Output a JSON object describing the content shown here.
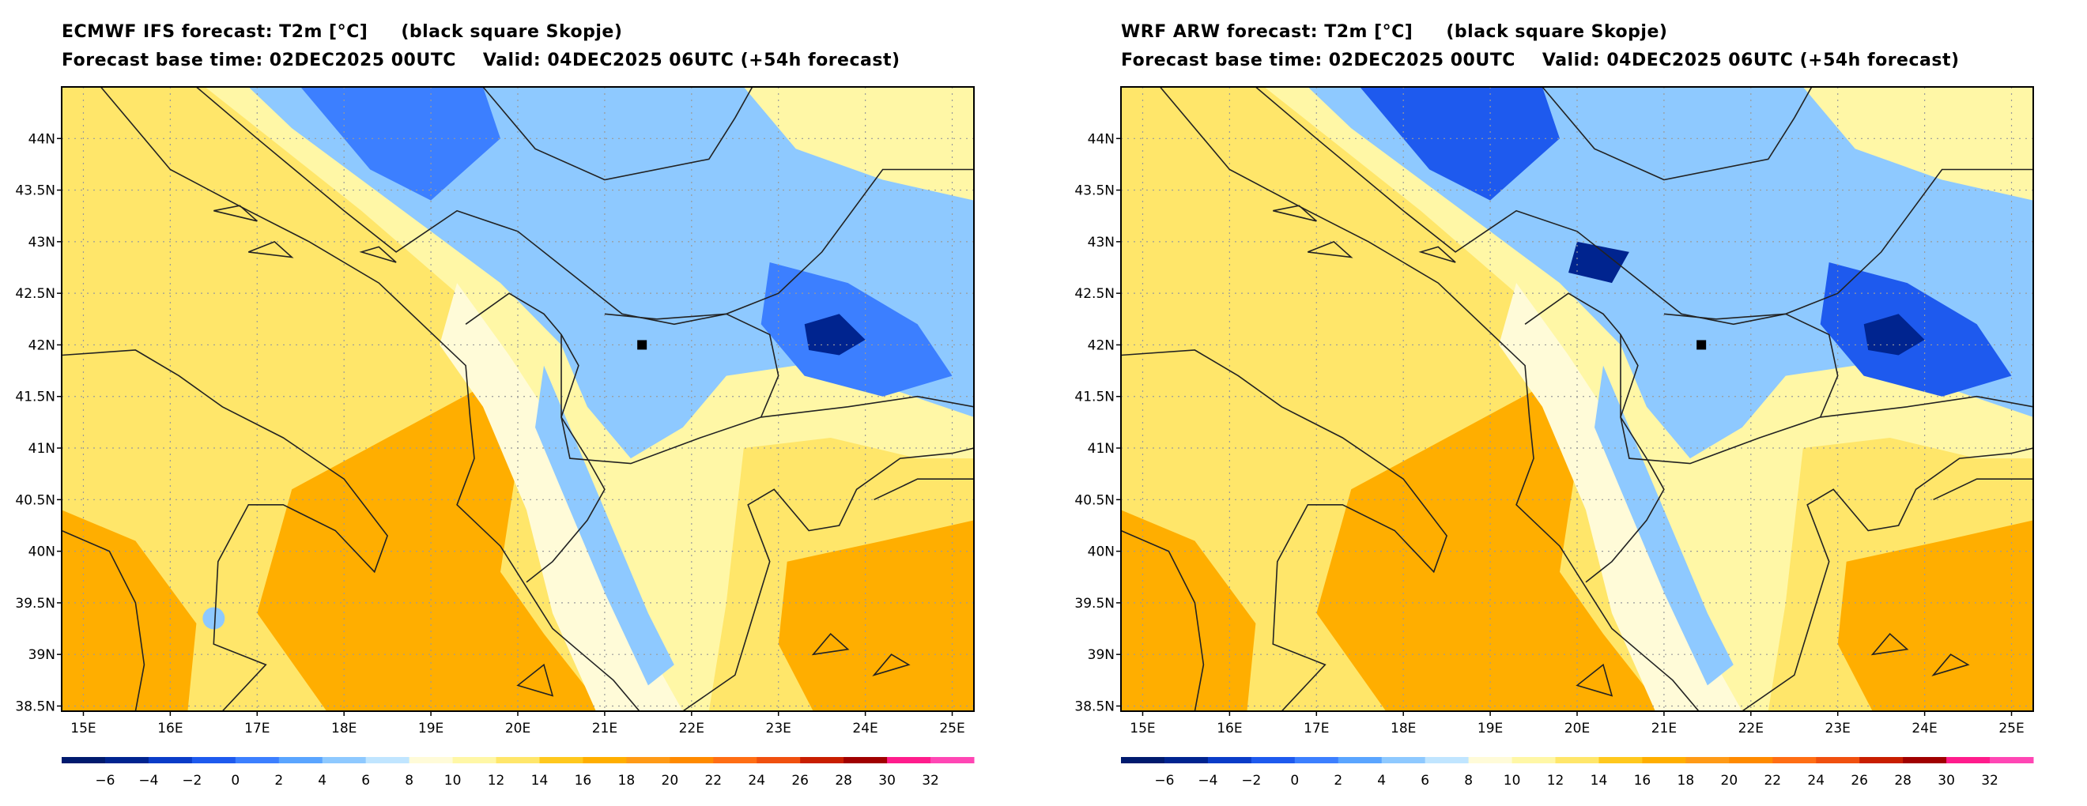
{
  "panels": [
    {
      "id": "ecmwf",
      "title_model": "ECMWF IFS forecast: T2m [°C]",
      "title_note": "(black square Skopje)",
      "base_time": "Forecast base time: 02DEC2025 00UTC",
      "valid": "Valid: 04DEC2025 06UTC (+54h forecast)",
      "marker_label": "Skopje"
    },
    {
      "id": "wrf",
      "title_model": "WRF ARW forecast: T2m [°C]",
      "title_note": "(black square Skopje)",
      "base_time": "Forecast base time: 02DEC2025 00UTC",
      "valid": "Valid: 04DEC2025 06UTC (+54h forecast)",
      "marker_label": "Skopje"
    }
  ],
  "map": {
    "lon_ticks": [
      "15E",
      "16E",
      "17E",
      "18E",
      "19E",
      "20E",
      "21E",
      "22E",
      "23E",
      "24E",
      "25E"
    ],
    "lat_ticks": [
      "44N",
      "43.5N",
      "43N",
      "42.5N",
      "42N",
      "41.5N",
      "41N",
      "40.5N",
      "40N",
      "39.5N",
      "39N",
      "38.5N"
    ],
    "lon_range": [
      14.75,
      25.25
    ],
    "lat_range": [
      38.45,
      44.5
    ],
    "skopje": {
      "lon": 21.43,
      "lat": 42.0
    }
  },
  "colorbar": {
    "labels": [
      "−6",
      "−4",
      "−2",
      "0",
      "2",
      "4",
      "6",
      "8",
      "10",
      "12",
      "14",
      "16",
      "18",
      "20",
      "22",
      "24",
      "26",
      "28",
      "30",
      "32"
    ],
    "colors": [
      "#001a6e",
      "#00248f",
      "#0a3cc8",
      "#1e5aee",
      "#3c7fff",
      "#5aa5ff",
      "#8ec9ff",
      "#c0e5ff",
      "#fffbd8",
      "#fff7a6",
      "#ffe66a",
      "#ffc81e",
      "#ffae00",
      "#ff9a16",
      "#ff8a00",
      "#ff6e14",
      "#f0500f",
      "#c81e00",
      "#a00000",
      "#ff1c8c",
      "#ff46b4"
    ]
  }
}
